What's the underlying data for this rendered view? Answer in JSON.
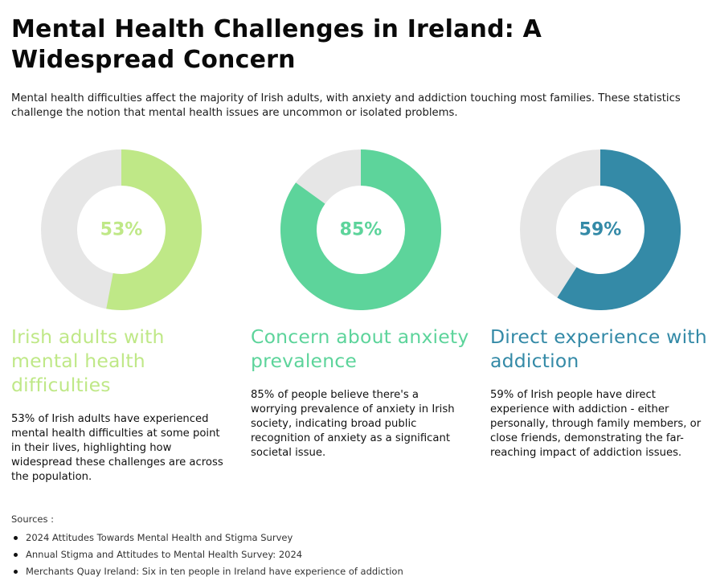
{
  "title": "Mental Health Challenges in Ireland: A Widespread Concern",
  "subtitle": "Mental health difficulties affect the majority of Irish adults, with anxiety and addiction touching most families. These statistics challenge the notion that mental health issues are uncommon or isolated problems.",
  "chart_data": [
    {
      "type": "pie",
      "value": 53,
      "label": "53%",
      "color": "#bfe887",
      "track_color": "#e6e6e6",
      "title": "Irish adults with mental health difficulties",
      "description": "53% of Irish adults have experienced mental health difficulties at some point in their lives, highlighting how widespread these challenges are across the population."
    },
    {
      "type": "pie",
      "value": 85,
      "label": "85%",
      "color": "#5dd49b",
      "track_color": "#e6e6e6",
      "title": "Concern about anxiety prevalence",
      "description": "85% of people believe there's a worrying prevalence of anxiety in Irish society, indicating broad public recognition of anxiety as a significant societal issue."
    },
    {
      "type": "pie",
      "value": 59,
      "label": "59%",
      "color": "#348aa7",
      "track_color": "#e6e6e6",
      "title": "Direct experience with addiction",
      "description": "59% of Irish people have direct experience with addiction - either personally, through family members, or close friends, demonstrating the far-reaching impact of addiction issues."
    }
  ],
  "sources": {
    "label": "Sources :",
    "items": [
      "2024 Attitudes Towards Mental Health and Stigma Survey",
      "Annual Stigma and Attitudes to Mental Health Survey: 2024",
      "Merchants Quay Ireland: Six in ten people in Ireland have experience of addiction"
    ]
  }
}
